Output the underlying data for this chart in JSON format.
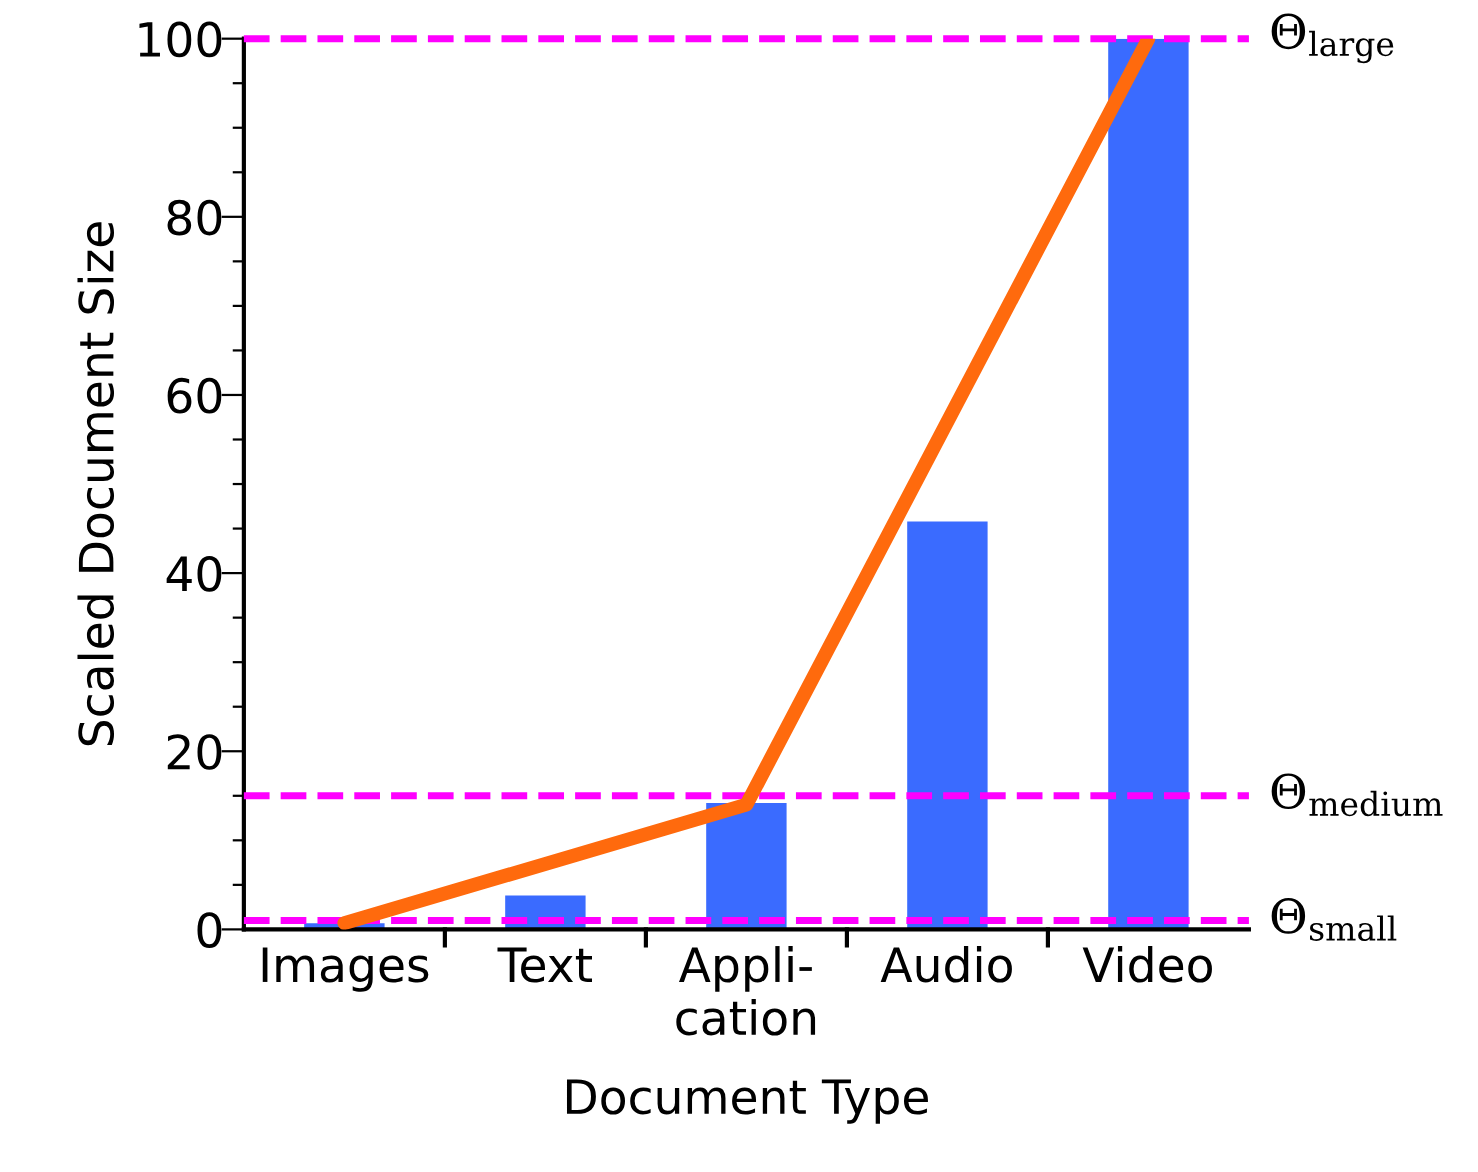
{
  "chart_data": {
    "type": "bar",
    "xlabel": "Document Type",
    "ylabel": "Scaled Document Size",
    "categories": [
      "Images",
      "Text",
      "Appli-\ncation",
      "Audio",
      "Video"
    ],
    "series": [
      {
        "color": "#3a6bff",
        "values": [
          0.7,
          3.8,
          14.2,
          45.8,
          100
        ]
      },
      {
        "type": "line",
        "color": "#ff6a0d",
        "values": [
          0.7,
          null,
          14,
          null,
          100
        ]
      }
    ],
    "ylim": [
      0,
      100
    ],
    "yticks": [
      0,
      {
        "value": 5,
        "label": null
      },
      {
        "value": 10,
        "label": null
      },
      {
        "value": 15,
        "label": null
      },
      20,
      {
        "value": 25,
        "label": null
      },
      {
        "value": 30,
        "label": null
      },
      {
        "value": 35,
        "label": null
      },
      40,
      {
        "value": 45,
        "label": null
      },
      {
        "value": 50,
        "label": null
      },
      {
        "value": 55,
        "label": null
      },
      60,
      {
        "value": 65,
        "label": null
      },
      {
        "value": 70,
        "label": null
      },
      {
        "value": 75,
        "label": null
      },
      80,
      {
        "value": 85,
        "label": null
      },
      {
        "value": 90,
        "label": null
      },
      {
        "value": 95,
        "label": null
      },
      100
    ],
    "ref_lines": [
      {
        "axis": "y",
        "value": 1,
        "label": "Θ$_{small}$",
        "color": "#ff00ff",
        "line_style": "dashed"
      },
      {
        "axis": "y",
        "value": 15,
        "label": "Θ$_{medium}$",
        "color": "#ff00ff",
        "line_style": "dashed"
      },
      {
        "axis": "y",
        "value": 100,
        "label": "Θ$_{large}$",
        "color": "#ff00ff",
        "line_style": "dashed"
      }
    ],
    "grid": false,
    "legend": false
  }
}
